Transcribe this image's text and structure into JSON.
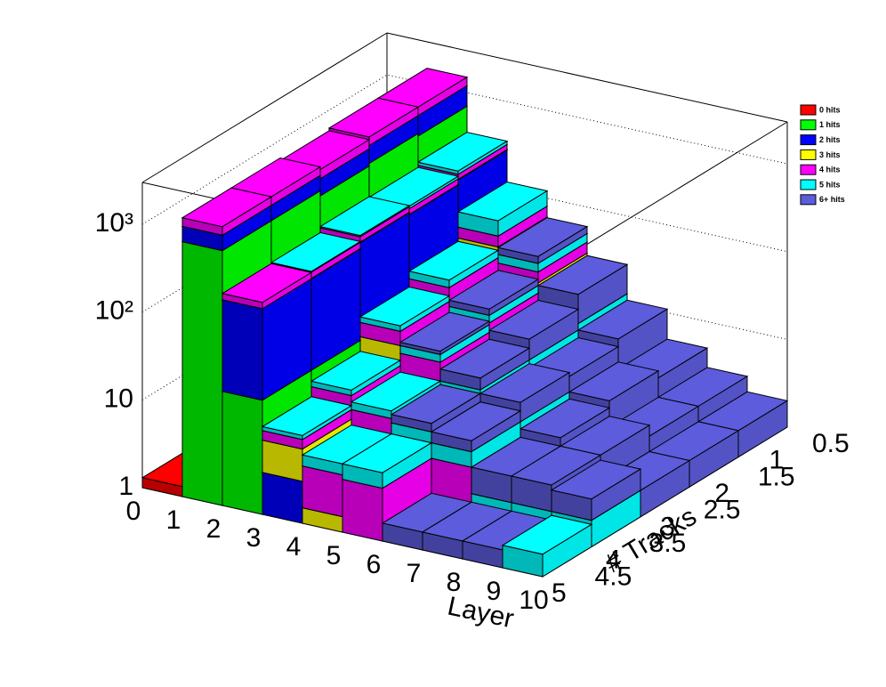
{
  "chart_data": {
    "type": "lego3d",
    "x_label": "Layer",
    "y_label": "# Tracks",
    "xlim": [
      0,
      10
    ],
    "xticks": [
      0,
      1,
      2,
      3,
      4,
      5,
      6,
      7,
      8,
      9,
      10
    ],
    "ylim": [
      0.5,
      5
    ],
    "yticks": [
      0.5,
      1,
      1.5,
      2,
      2.5,
      3,
      3.5,
      4,
      4.5,
      5
    ],
    "zlim": [
      1,
      3000
    ],
    "zticks": [
      1,
      10,
      {
        "value": 100,
        "label": "10²"
      },
      {
        "value": 1000,
        "label": "10³"
      }
    ],
    "log_z": true,
    "grid": true,
    "legend": "top-right",
    "series": [
      {
        "name": "0 hits",
        "color": "#ff0000",
        "values": [
          [
            0,
            0,
            0,
            0,
            0,
            0,
            0,
            0,
            0,
            0
          ],
          [
            0,
            0,
            0,
            0,
            0,
            0,
            0,
            0,
            0,
            0
          ],
          [
            0,
            0,
            0,
            0,
            0,
            0,
            0,
            0,
            0,
            0
          ],
          [
            1.1,
            0,
            0,
            0,
            0,
            0,
            0,
            0,
            0,
            0
          ],
          [
            1.3,
            0,
            0,
            0,
            0,
            0,
            0,
            0,
            0,
            0
          ]
        ]
      },
      {
        "name": "1 hits",
        "color": "#00ff00",
        "values": [
          [
            0,
            700,
            30,
            0,
            0,
            0,
            0,
            0,
            0,
            0
          ],
          [
            0,
            750,
            25,
            0,
            0,
            0,
            0,
            0,
            0,
            0
          ],
          [
            0,
            700,
            30,
            0,
            0,
            0,
            0,
            0,
            0,
            0
          ],
          [
            0,
            800,
            20,
            0,
            0,
            0,
            0,
            0,
            0,
            0
          ],
          [
            0,
            800,
            20,
            0,
            0,
            0,
            0,
            0,
            0,
            0
          ]
        ]
      },
      {
        "name": "2 hits",
        "color": "#0000ff",
        "values": [
          [
            0,
            500,
            250,
            1,
            0,
            0,
            0,
            0,
            0,
            0
          ],
          [
            0,
            450,
            220,
            1,
            0,
            0,
            0,
            0,
            0,
            0
          ],
          [
            0,
            400,
            230,
            2,
            0,
            0,
            0,
            0,
            0,
            0
          ],
          [
            0,
            400,
            200,
            2,
            0,
            0,
            0,
            0,
            0,
            0
          ],
          [
            0,
            400,
            200,
            3,
            0,
            0,
            0,
            0,
            0,
            0
          ]
        ]
      },
      {
        "name": "3 hits",
        "color": "#ffff00",
        "values": [
          [
            0,
            0,
            4,
            60,
            30,
            2,
            0,
            0,
            0,
            0
          ],
          [
            0,
            0,
            3,
            30,
            15,
            1,
            0,
            0,
            0,
            0
          ],
          [
            0,
            0,
            3,
            20,
            8,
            0,
            0,
            0,
            0,
            0
          ],
          [
            0,
            0,
            2,
            8,
            3,
            0,
            0,
            0,
            0,
            0
          ],
          [
            0,
            0,
            0,
            4,
            1.5,
            0,
            0,
            0,
            0,
            0
          ]
        ]
      },
      {
        "name": "4 hits",
        "color": "#ff00ff",
        "values": [
          [
            0,
            300,
            40,
            20,
            10,
            5,
            0,
            0,
            0,
            0
          ],
          [
            0,
            300,
            40,
            15,
            8,
            6,
            0,
            0,
            0,
            0
          ],
          [
            0,
            300,
            40,
            10,
            10,
            8,
            3,
            0,
            0,
            0
          ],
          [
            0,
            300,
            40,
            3,
            6,
            6,
            4,
            0,
            0,
            0
          ],
          [
            0,
            300,
            40,
            2,
            3,
            4,
            0,
            0,
            0,
            0
          ]
        ]
      },
      {
        "name": "5 hits",
        "color": "#00ffff",
        "values": [
          [
            0,
            0,
            30,
            40,
            10,
            6,
            3,
            0,
            0,
            0
          ],
          [
            0,
            0,
            20,
            10,
            5,
            4,
            3,
            2,
            0,
            0
          ],
          [
            0,
            0,
            10,
            5,
            4,
            3,
            3,
            2,
            2,
            0
          ],
          [
            0,
            0,
            5,
            2,
            2,
            2,
            2,
            2,
            2,
            2
          ],
          [
            0,
            0,
            0,
            1,
            1.5,
            2,
            0,
            0,
            0,
            1.8
          ]
        ]
      },
      {
        "name": "6+ hits",
        "color": "#5c5cdc",
        "values": [
          [
            0,
            0,
            0,
            0,
            10,
            15,
            8,
            5,
            3,
            2
          ],
          [
            0,
            0,
            0,
            0,
            5,
            8,
            6,
            4,
            3,
            2
          ],
          [
            0,
            0,
            0,
            0,
            2,
            4,
            4,
            3,
            2,
            2
          ],
          [
            0,
            0,
            0,
            0,
            0,
            2,
            2,
            2,
            2,
            1.5
          ],
          [
            0,
            0,
            0,
            0,
            0,
            0,
            1.6,
            1.6,
            1.6,
            0
          ]
        ]
      }
    ]
  }
}
